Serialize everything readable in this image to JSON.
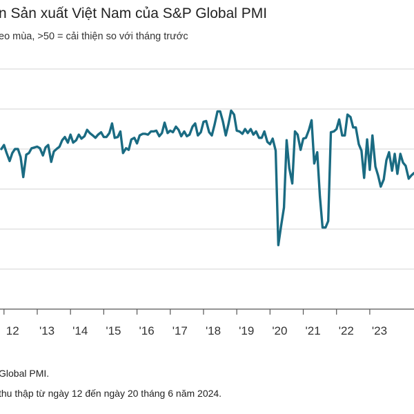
{
  "title": "n Sản xuất Việt Nam của S&P Global PMI",
  "subtitle": "eo mùa, >50 = cải thiện so với tháng trước",
  "source": "Global PMI.",
  "note": "thu thập từ ngày 12 đến ngày 20 tháng 6 năm 2024.",
  "colors": {
    "line": "#1a6b82",
    "grid": "#d3d3d3",
    "axis": "#555555"
  },
  "chart_data": {
    "type": "line",
    "title": "n Sản xuất Việt Nam của S&P Global PMI",
    "xlabel": "",
    "ylabel": "",
    "grid": true,
    "xlim": [
      2011.88,
      2024.33
    ],
    "ylim": [
      30,
      60
    ],
    "yticks": [
      35,
      40,
      45,
      50,
      55,
      60
    ],
    "x_tick_values": [
      2012,
      2013,
      2014,
      2015,
      2016,
      2017,
      2018,
      2019,
      2020,
      2021,
      2022,
      2023
    ],
    "x_tick_labels": [
      "12",
      "'13",
      "'14",
      "'15",
      "'16",
      "'17",
      "'18",
      "'19",
      "'20",
      "'21",
      "'22",
      "'23"
    ],
    "series": [
      {
        "name": "",
        "x": [
          2011.92,
          2012.0,
          2012.08,
          2012.17,
          2012.25,
          2012.33,
          2012.42,
          2012.5,
          2012.58,
          2012.67,
          2012.75,
          2012.83,
          2012.92,
          2013.0,
          2013.08,
          2013.17,
          2013.25,
          2013.33,
          2013.42,
          2013.5,
          2013.58,
          2013.67,
          2013.75,
          2013.83,
          2013.92,
          2014.0,
          2014.08,
          2014.17,
          2014.25,
          2014.33,
          2014.42,
          2014.5,
          2014.58,
          2014.67,
          2014.75,
          2014.83,
          2014.92,
          2015.0,
          2015.08,
          2015.17,
          2015.25,
          2015.33,
          2015.42,
          2015.5,
          2015.58,
          2015.67,
          2015.75,
          2015.83,
          2015.92,
          2016.0,
          2016.08,
          2016.17,
          2016.25,
          2016.33,
          2016.42,
          2016.5,
          2016.58,
          2016.67,
          2016.75,
          2016.83,
          2016.92,
          2017.0,
          2017.08,
          2017.17,
          2017.25,
          2017.33,
          2017.42,
          2017.5,
          2017.58,
          2017.67,
          2017.75,
          2017.83,
          2017.92,
          2018.0,
          2018.08,
          2018.17,
          2018.25,
          2018.33,
          2018.42,
          2018.5,
          2018.58,
          2018.67,
          2018.75,
          2018.83,
          2018.92,
          2019.0,
          2019.08,
          2019.17,
          2019.25,
          2019.33,
          2019.42,
          2019.5,
          2019.58,
          2019.67,
          2019.75,
          2019.83,
          2019.92,
          2020.0,
          2020.08,
          2020.17,
          2020.25,
          2020.33,
          2020.42,
          2020.5,
          2020.58,
          2020.67,
          2020.75,
          2020.83,
          2020.92,
          2021.0,
          2021.08,
          2021.17,
          2021.25,
          2021.33,
          2021.42,
          2021.5,
          2021.58,
          2021.67,
          2021.75,
          2021.83,
          2021.92,
          2022.0,
          2022.08,
          2022.17,
          2022.25,
          2022.33,
          2022.42,
          2022.5,
          2022.58,
          2022.67,
          2022.75,
          2022.83,
          2022.92,
          2023.0,
          2023.08,
          2023.17,
          2023.25,
          2023.33,
          2023.42,
          2023.5,
          2023.58,
          2023.67,
          2023.75,
          2023.83,
          2023.92,
          2024.0,
          2024.08,
          2024.17,
          2024.25,
          2024.33
        ],
        "values": [
          50.0,
          50.5,
          49.5,
          48.5,
          49.5,
          50.0,
          50.0,
          49.0,
          46.5,
          49.3,
          49.5,
          50.1,
          50.2,
          50.3,
          50.1,
          49.2,
          50.2,
          50.5,
          48.4,
          49.7,
          50.0,
          50.3,
          51.1,
          51.5,
          50.8,
          51.8,
          50.8,
          51.1,
          51.8,
          51.3,
          51.6,
          52.4,
          52.0,
          51.7,
          51.4,
          51.8,
          52.1,
          51.5,
          51.5,
          52.0,
          53.2,
          51.4,
          51.5,
          52.2,
          49.5,
          50.1,
          49.9,
          51.2,
          51.4,
          50.7,
          51.7,
          51.9,
          51.9,
          51.8,
          52.2,
          52.2,
          52.3,
          51.6,
          52.0,
          53.3,
          52.0,
          52.3,
          52.1,
          52.8,
          52.4,
          51.6,
          52.2,
          51.6,
          51.8,
          52.8,
          53.2,
          51.7,
          52.1,
          53.4,
          53.5,
          52.1,
          51.7,
          53.0,
          54.7,
          54.7,
          53.5,
          51.7,
          53.1,
          54.8,
          54.3,
          52.3,
          52.2,
          51.9,
          52.5,
          52.0,
          52.5,
          51.8,
          52.2,
          51.4,
          51.4,
          52.2,
          50.9,
          50.6,
          51.3,
          49.8,
          38.0,
          40.3,
          42.7,
          51.1,
          47.6,
          45.7,
          52.2,
          51.8,
          49.9,
          51.3,
          51.4,
          52.4,
          53.6,
          48.2,
          49.6,
          44.1,
          40.2,
          40.2,
          41.0,
          52.1,
          52.2,
          52.5,
          53.7,
          51.7,
          51.7,
          54.3,
          54.0,
          52.7,
          52.7,
          50.6,
          49.8,
          46.4,
          51.2,
          47.4,
          51.7,
          47.8,
          46.7,
          45.3,
          46.2,
          48.6,
          49.6,
          47.3,
          49.4,
          46.9,
          49.4,
          48.3,
          47.9,
          46.3,
          46.7,
          47.0
        ],
        "color": "#1a6b82"
      }
    ]
  }
}
